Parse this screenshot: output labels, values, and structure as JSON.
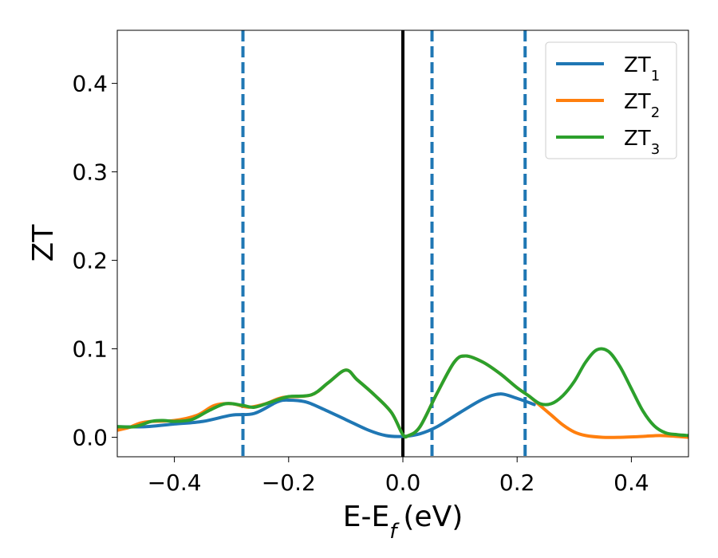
{
  "chart_data": {
    "type": "line",
    "xlabel": "E-E",
    "xlabel_sub": "f",
    "xlabel_unit": "(eV)",
    "ylabel": "ZT",
    "xlim": [
      -0.5,
      0.5
    ],
    "ylim": [
      -0.022,
      0.46
    ],
    "x_ticks": [
      -0.4,
      -0.2,
      0.0,
      0.2,
      0.4
    ],
    "x_tick_labels": [
      "−0.4",
      "−0.2",
      "0.0",
      "0.2",
      "0.4"
    ],
    "y_ticks": [
      0.0,
      0.1,
      0.2,
      0.3,
      0.4
    ],
    "y_tick_labels": [
      "0.0",
      "0.1",
      "0.2",
      "0.3",
      "0.4"
    ],
    "grid": false,
    "legend_position": "top-right",
    "vertical_lines": [
      {
        "x": -0.28,
        "style": "dashed",
        "color": "#1f77b4"
      },
      {
        "x": 0.0,
        "style": "solid",
        "color": "#000000"
      },
      {
        "x": 0.051,
        "style": "dashed",
        "color": "#1f77b4"
      },
      {
        "x": 0.214,
        "style": "dashed",
        "color": "#1f77b4"
      }
    ],
    "series": [
      {
        "name": "ZT",
        "name_sub": "1",
        "color": "#1f77b4",
        "points": [
          [
            -0.5,
            0.012
          ],
          [
            -0.45,
            0.012
          ],
          [
            -0.4,
            0.015
          ],
          [
            -0.35,
            0.018
          ],
          [
            -0.3,
            0.025
          ],
          [
            -0.26,
            0.027
          ],
          [
            -0.22,
            0.04
          ],
          [
            -0.2,
            0.042
          ],
          [
            -0.17,
            0.04
          ],
          [
            -0.14,
            0.032
          ],
          [
            -0.1,
            0.02
          ],
          [
            -0.06,
            0.008
          ],
          [
            -0.03,
            0.002
          ],
          [
            0.0,
            0.001
          ],
          [
            0.03,
            0.004
          ],
          [
            0.06,
            0.012
          ],
          [
            0.1,
            0.028
          ],
          [
            0.14,
            0.043
          ],
          [
            0.17,
            0.049
          ],
          [
            0.2,
            0.044
          ],
          [
            0.23,
            0.037
          ]
        ]
      },
      {
        "name": "ZT",
        "name_sub": "2",
        "color": "#ff7f0e",
        "points": [
          [
            -0.5,
            0.008
          ],
          [
            -0.48,
            0.011
          ],
          [
            -0.46,
            0.016
          ],
          [
            -0.44,
            0.018
          ],
          [
            -0.4,
            0.019
          ],
          [
            -0.36,
            0.025
          ],
          [
            -0.33,
            0.036
          ],
          [
            -0.3,
            0.038
          ],
          [
            -0.27,
            0.034
          ],
          [
            -0.24,
            0.038
          ],
          [
            -0.21,
            0.045
          ],
          [
            -0.16,
            0.048
          ],
          [
            -0.13,
            0.062
          ],
          [
            -0.1,
            0.076
          ],
          [
            -0.08,
            0.065
          ],
          [
            -0.05,
            0.048
          ],
          [
            -0.02,
            0.028
          ],
          [
            0.0,
            0.003
          ],
          [
            0.01,
            0.002
          ],
          [
            0.03,
            0.012
          ],
          [
            0.06,
            0.05
          ],
          [
            0.09,
            0.085
          ],
          [
            0.11,
            0.092
          ],
          [
            0.14,
            0.085
          ],
          [
            0.17,
            0.072
          ],
          [
            0.2,
            0.056
          ],
          [
            0.22,
            0.047
          ],
          [
            0.24,
            0.036
          ],
          [
            0.26,
            0.025
          ],
          [
            0.28,
            0.014
          ],
          [
            0.3,
            0.006
          ],
          [
            0.32,
            0.002
          ],
          [
            0.35,
            0.0
          ],
          [
            0.38,
            0.0
          ],
          [
            0.42,
            0.001
          ],
          [
            0.45,
            0.002
          ],
          [
            0.48,
            0.001
          ],
          [
            0.5,
            0.0
          ]
        ]
      },
      {
        "name": "ZT",
        "name_sub": "3",
        "color": "#2ca02c",
        "points": [
          [
            -0.5,
            0.012
          ],
          [
            -0.47,
            0.012
          ],
          [
            -0.44,
            0.018
          ],
          [
            -0.42,
            0.019
          ],
          [
            -0.4,
            0.018
          ],
          [
            -0.37,
            0.02
          ],
          [
            -0.34,
            0.03
          ],
          [
            -0.31,
            0.038
          ],
          [
            -0.28,
            0.036
          ],
          [
            -0.26,
            0.034
          ],
          [
            -0.23,
            0.04
          ],
          [
            -0.2,
            0.046
          ],
          [
            -0.16,
            0.048
          ],
          [
            -0.13,
            0.062
          ],
          [
            -0.1,
            0.076
          ],
          [
            -0.08,
            0.065
          ],
          [
            -0.05,
            0.048
          ],
          [
            -0.02,
            0.028
          ],
          [
            0.0,
            0.003
          ],
          [
            0.01,
            0.002
          ],
          [
            0.03,
            0.012
          ],
          [
            0.06,
            0.05
          ],
          [
            0.09,
            0.085
          ],
          [
            0.11,
            0.092
          ],
          [
            0.14,
            0.085
          ],
          [
            0.17,
            0.072
          ],
          [
            0.2,
            0.056
          ],
          [
            0.22,
            0.047
          ],
          [
            0.24,
            0.038
          ],
          [
            0.26,
            0.038
          ],
          [
            0.28,
            0.047
          ],
          [
            0.3,
            0.063
          ],
          [
            0.32,
            0.085
          ],
          [
            0.34,
            0.099
          ],
          [
            0.36,
            0.097
          ],
          [
            0.38,
            0.08
          ],
          [
            0.4,
            0.055
          ],
          [
            0.42,
            0.03
          ],
          [
            0.44,
            0.013
          ],
          [
            0.46,
            0.005
          ],
          [
            0.48,
            0.003
          ],
          [
            0.5,
            0.002
          ]
        ]
      }
    ]
  }
}
